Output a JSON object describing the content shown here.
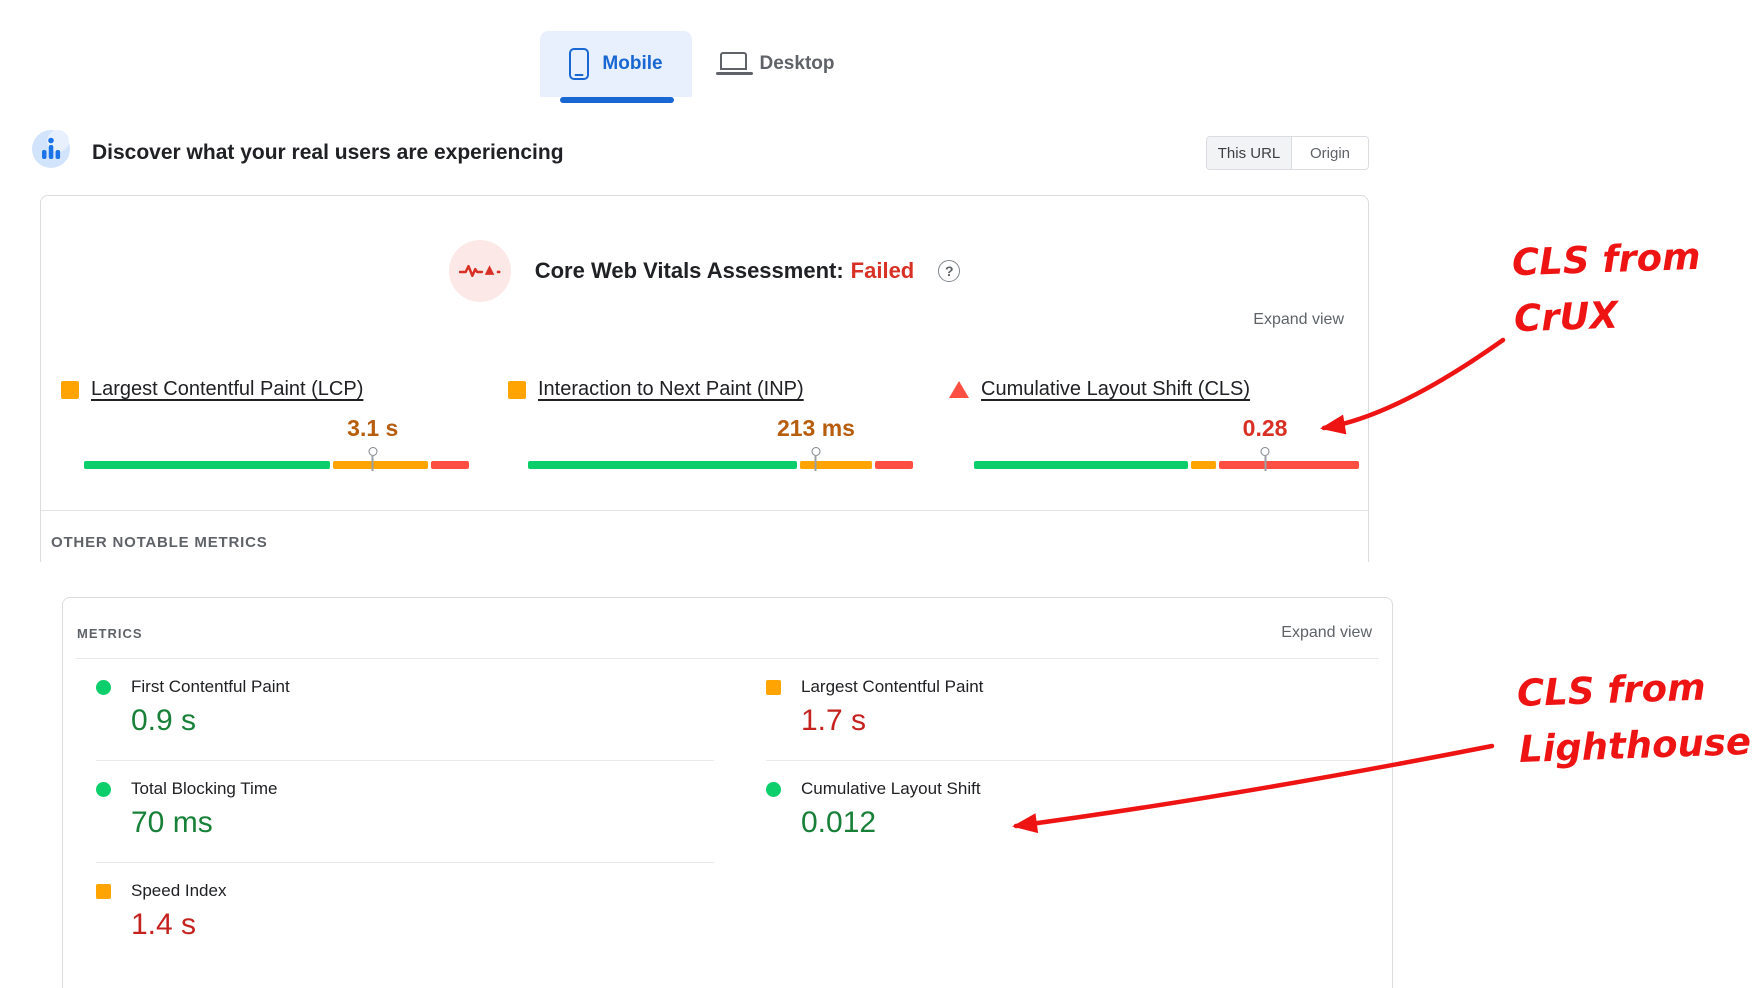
{
  "device_tabs": {
    "mobile": {
      "label": "Mobile",
      "selected": true
    },
    "desktop": {
      "label": "Desktop",
      "selected": false
    }
  },
  "field_section": {
    "title": "Discover what your real users are experiencing",
    "scope_toggle": {
      "this_url": "This URL",
      "origin": "Origin",
      "selected": "This URL"
    }
  },
  "crux_card": {
    "assessment_label": "Core Web Vitals Assessment:",
    "assessment_result": "Failed",
    "help_icon_glyph": "?",
    "expand_view": "Expand view",
    "other_notable_metrics": "OTHER NOTABLE METRICS",
    "metrics": [
      {
        "label": "Largest Contentful Paint (LCP)",
        "value": "3.1 s",
        "value_color": "#b85c0e",
        "icon": "orange-square",
        "bar": {
          "good": 65,
          "ni": 25,
          "poor": 10
        },
        "marker_pct": 75
      },
      {
        "label": "Interaction to Next Paint (INP)",
        "value": "213 ms",
        "value_color": "#b85c0e",
        "icon": "orange-square",
        "bar": {
          "good": 71,
          "ni": 19,
          "poor": 10
        },
        "marker_pct": 74.8
      },
      {
        "label": "Cumulative Layout Shift (CLS)",
        "value": "0.28",
        "value_color": "#d93025",
        "icon": "red-triangle",
        "bar": {
          "good": 56.5,
          "ni": 6.5,
          "poor": 37
        },
        "marker_pct": 75.6
      }
    ]
  },
  "lighthouse_card": {
    "header": "METRICS",
    "expand_view": "Expand view",
    "left_column": [
      {
        "label": "First Contentful Paint",
        "value": "0.9 s",
        "value_color": "#188038",
        "icon": "green-dot"
      },
      {
        "label": "Total Blocking Time",
        "value": "70 ms",
        "value_color": "#188038",
        "icon": "green-dot"
      },
      {
        "label": "Speed Index",
        "value": "1.4 s",
        "value_color": "#c5221f",
        "icon": "orange-square"
      }
    ],
    "right_column": [
      {
        "label": "Largest Contentful Paint",
        "value": "1.7 s",
        "value_color": "#c5221f",
        "icon": "orange-square"
      },
      {
        "label": "Cumulative Layout Shift",
        "value": "0.012",
        "value_color": "#188038",
        "icon": "green-dot"
      }
    ]
  },
  "annotations": {
    "crux_note": {
      "line1": "CLS from",
      "line2": "CrUX"
    },
    "lighthouse_note": {
      "line1": "CLS from",
      "line2": "Lighthouse"
    }
  },
  "colors": {
    "accent_blue": "#1967d2",
    "tab_selected_bg": "#e8f0fe",
    "good_green": "#0cce6b",
    "needs_improvement_orange": "#ffa400",
    "poor_red": "#ff4e42",
    "failed_red": "#d93025",
    "annotation_red": "#ee1414"
  }
}
